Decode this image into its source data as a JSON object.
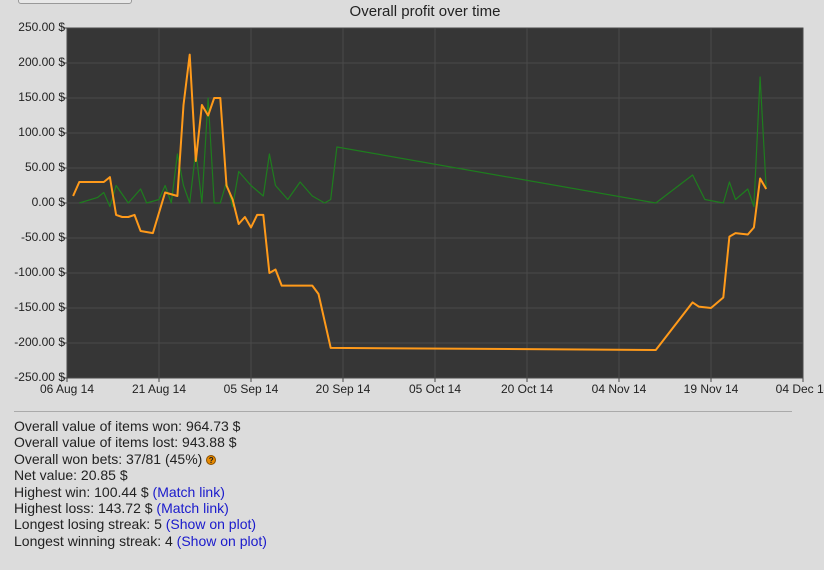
{
  "chart_data": {
    "type": "line",
    "title": "Overall profit over time",
    "xlim": [
      "2014-08-06",
      "2014-12-04"
    ],
    "xticks": [
      {
        "value": "2014-08-06",
        "label": "06 Aug 14"
      },
      {
        "value": "2014-08-21",
        "label": "21 Aug 14"
      },
      {
        "value": "2014-09-05",
        "label": "05 Sep 14"
      },
      {
        "value": "2014-09-20",
        "label": "20 Sep 14"
      },
      {
        "value": "2014-10-05",
        "label": "05 Oct 14"
      },
      {
        "value": "2014-10-20",
        "label": "20 Oct 14"
      },
      {
        "value": "2014-11-04",
        "label": "04 Nov 14"
      },
      {
        "value": "2014-11-19",
        "label": "19 Nov 14"
      },
      {
        "value": "2014-12-04",
        "label": "04 Dec 14"
      }
    ],
    "ylim": [
      -250,
      250
    ],
    "yticks": [
      {
        "value": 250,
        "label": "250.00 $"
      },
      {
        "value": 200,
        "label": "200.00 $"
      },
      {
        "value": 150,
        "label": "150.00 $"
      },
      {
        "value": 100,
        "label": "100.00 $"
      },
      {
        "value": 50,
        "label": "50.00 $"
      },
      {
        "value": 0,
        "label": "0.00 $"
      },
      {
        "value": -50,
        "label": "-50.00 $"
      },
      {
        "value": -100,
        "label": "-100.00 $"
      },
      {
        "value": -150,
        "label": "-150.00 $"
      },
      {
        "value": -200,
        "label": "-200.00 $"
      },
      {
        "value": -250,
        "label": "-250.00 $"
      }
    ],
    "grid": true,
    "series": [
      {
        "color": "#1e7d1e",
        "x": [
          "2014-08-08",
          "2014-08-11",
          "2014-08-12",
          "2014-08-13",
          "2014-08-14",
          "2014-08-16",
          "2014-08-18",
          "2014-08-19",
          "2014-08-21",
          "2014-08-22",
          "2014-08-23",
          "2014-08-24",
          "2014-08-25",
          "2014-08-26",
          "2014-08-27",
          "2014-08-28",
          "2014-08-29",
          "2014-08-30",
          "2014-08-31",
          "2014-09-01",
          "2014-09-02",
          "2014-09-03",
          "2014-09-05",
          "2014-09-07",
          "2014-09-08",
          "2014-09-09",
          "2014-09-11",
          "2014-09-13",
          "2014-09-15",
          "2014-09-17",
          "2014-09-18",
          "2014-09-19",
          "2014-11-10",
          "2014-11-16",
          "2014-11-18",
          "2014-11-21",
          "2014-11-22",
          "2014-11-23",
          "2014-11-25",
          "2014-11-26",
          "2014-11-27",
          "2014-11-28"
        ],
        "values": [
          0,
          8,
          15,
          -5,
          25,
          0,
          20,
          0,
          5,
          25,
          0,
          70,
          25,
          0,
          75,
          0,
          150,
          0,
          0,
          30,
          -5,
          45,
          25,
          10,
          70,
          25,
          5,
          30,
          10,
          0,
          5,
          80,
          0,
          40,
          5,
          0,
          30,
          5,
          20,
          -5,
          180,
          20
        ]
      },
      {
        "color": "#ff9a1a",
        "x": [
          "2014-08-07",
          "2014-08-08",
          "2014-08-12",
          "2014-08-13",
          "2014-08-14",
          "2014-08-15",
          "2014-08-16",
          "2014-08-17",
          "2014-08-18",
          "2014-08-20",
          "2014-08-22",
          "2014-08-24",
          "2014-08-25",
          "2014-08-26",
          "2014-08-27",
          "2014-08-28",
          "2014-08-29",
          "2014-08-30",
          "2014-08-31",
          "2014-09-01",
          "2014-09-02",
          "2014-09-03",
          "2014-09-04",
          "2014-09-05",
          "2014-09-06",
          "2014-09-07",
          "2014-09-08",
          "2014-09-09",
          "2014-09-10",
          "2014-09-15",
          "2014-09-16",
          "2014-09-18",
          "2014-11-10",
          "2014-11-16",
          "2014-11-17",
          "2014-11-19",
          "2014-11-21",
          "2014-11-22",
          "2014-11-23",
          "2014-11-25",
          "2014-11-26",
          "2014-11-27",
          "2014-11-28"
        ],
        "values": [
          10,
          30,
          30,
          37,
          -17,
          -20,
          -20,
          -17,
          -40,
          -43,
          15,
          10,
          140,
          212,
          60,
          140,
          125,
          150,
          150,
          25,
          5,
          -30,
          -20,
          -35,
          -17,
          -17,
          -100,
          -95,
          -118,
          -118,
          -130,
          -207,
          -210,
          -142,
          -148,
          -150,
          -135,
          -48,
          -43,
          -45,
          -35,
          35,
          20
        ]
      }
    ]
  },
  "stats": [
    {
      "text": "Overall value of items won: 964.73 $"
    },
    {
      "text": "Overall value of items lost: 943.88 $"
    },
    {
      "text": "Overall won bets: 37/81 (45%)",
      "icon": "?"
    },
    {
      "text": "Net value: 20.85 $"
    },
    {
      "text": "Highest win: 100.44 $",
      "link": "(Match link)"
    },
    {
      "text": "Highest loss: 143.72 $",
      "link": "(Match link)"
    },
    {
      "text": "Longest losing streak: 5",
      "link": "(Show on plot)"
    },
    {
      "text": "Longest winning streak: 4",
      "link": "(Show on plot)"
    }
  ]
}
